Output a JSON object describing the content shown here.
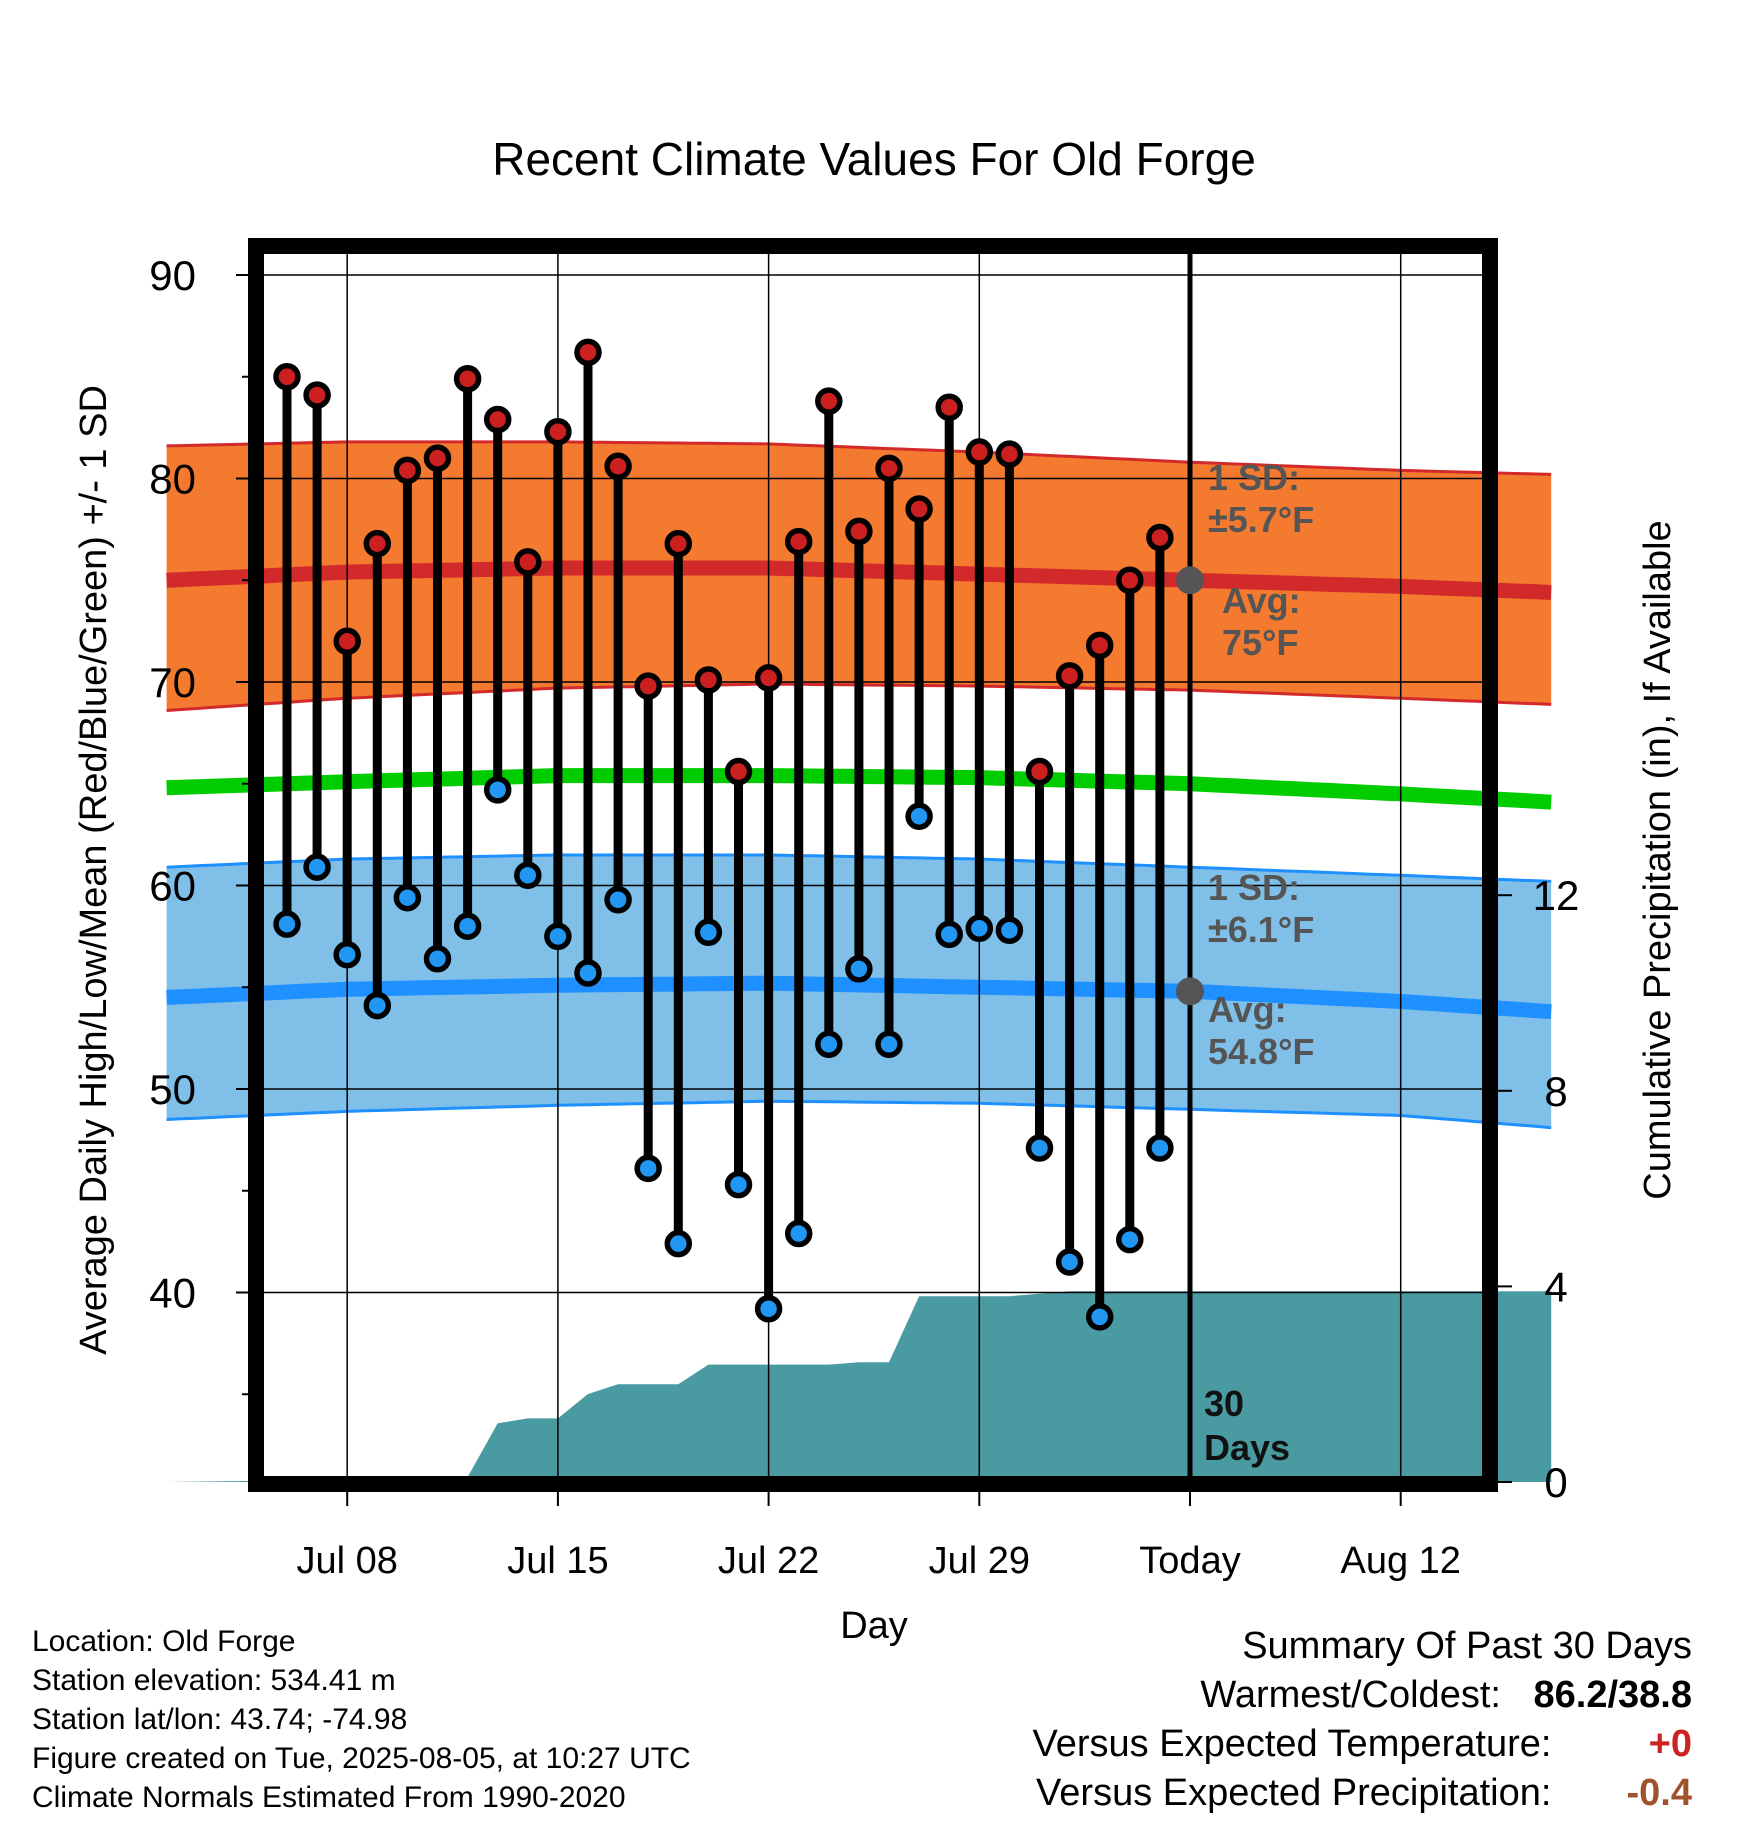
{
  "chart_data": {
    "type": "line",
    "title": "Recent Climate Values For Old Forge",
    "xlabel": "Day",
    "ylabel": "Average Daily High/Low/Mean (Red/Blue/Green) +/- 1 SD",
    "y2label": "Cumulative Precipitation (in), If Available",
    "x_range_days": [
      -34,
      12
    ],
    "ylim": [
      31,
      90
    ],
    "y2lim": [
      0,
      18
    ],
    "y_ticks": [
      40,
      50,
      60,
      70,
      80,
      90
    ],
    "y2_ticks": [
      0,
      4,
      8,
      12
    ],
    "x_ticks": [
      {
        "day": -28,
        "label": "Jul 08"
      },
      {
        "day": -21,
        "label": "Jul 15"
      },
      {
        "day": -14,
        "label": "Jul 22"
      },
      {
        "day": -7,
        "label": "Jul 29"
      },
      {
        "day": 0,
        "label": "Today"
      },
      {
        "day": 7,
        "label": "Aug 12"
      }
    ],
    "grid": true,
    "daily_high": [
      85.0,
      84.1,
      72.0,
      76.8,
      80.4,
      81.0,
      84.9,
      82.9,
      75.9,
      82.3,
      86.2,
      80.6,
      69.8,
      76.8,
      70.1,
      65.6,
      70.2,
      76.9,
      83.8,
      77.4,
      80.5,
      78.5,
      83.5,
      81.3,
      81.2,
      65.6,
      70.3,
      71.8,
      75.0,
      77.1
    ],
    "daily_low": [
      58.1,
      60.9,
      56.6,
      54.1,
      59.4,
      56.4,
      58.0,
      64.7,
      60.5,
      57.5,
      55.7,
      59.3,
      46.1,
      42.4,
      57.7,
      45.3,
      39.2,
      42.9,
      52.2,
      55.9,
      52.2,
      63.4,
      57.6,
      57.9,
      57.8,
      47.1,
      41.5,
      38.8,
      42.6,
      47.1
    ],
    "normal_high": {
      "days": [
        -34,
        -28,
        -21,
        -14,
        -7,
        0,
        7,
        12
      ],
      "avg": [
        75.0,
        75.4,
        75.6,
        75.6,
        75.3,
        75.0,
        74.7,
        74.4
      ],
      "sd_upper": [
        81.6,
        81.8,
        81.8,
        81.7,
        81.3,
        80.8,
        80.4,
        80.2
      ],
      "sd_lower": [
        68.6,
        69.2,
        69.7,
        69.9,
        69.8,
        69.6,
        69.2,
        68.9
      ]
    },
    "normal_mean": {
      "days": [
        -34,
        -28,
        -21,
        -14,
        -7,
        0,
        7,
        12
      ],
      "avg": [
        64.8,
        65.1,
        65.4,
        65.4,
        65.3,
        65.0,
        64.5,
        64.1
      ]
    },
    "normal_low": {
      "days": [
        -34,
        -28,
        -21,
        -14,
        -7,
        0,
        7,
        12
      ],
      "avg": [
        54.5,
        54.9,
        55.1,
        55.2,
        55.0,
        54.8,
        54.3,
        53.8
      ],
      "sd_upper": [
        60.9,
        61.3,
        61.5,
        61.5,
        61.3,
        60.9,
        60.5,
        60.2
      ],
      "sd_lower": [
        48.5,
        48.9,
        49.2,
        49.4,
        49.3,
        49.0,
        48.7,
        48.1
      ]
    },
    "cumulative_precip": {
      "days": [
        -34,
        -28,
        -27,
        -26,
        -25,
        -24,
        -23,
        -22,
        -21,
        -20,
        -19,
        -18,
        -17,
        -16,
        -15,
        -14,
        -13,
        -12,
        -11,
        -10,
        -9,
        -8,
        -7,
        -6,
        -5,
        -4,
        0,
        12
      ],
      "values": [
        0.0,
        0.05,
        0.05,
        0.05,
        0.05,
        0.1,
        1.2,
        1.3,
        1.3,
        1.8,
        2.0,
        2.0,
        2.0,
        2.4,
        2.4,
        2.4,
        2.4,
        2.4,
        2.45,
        2.45,
        3.8,
        3.8,
        3.8,
        3.8,
        3.85,
        3.9,
        3.9,
        3.9
      ]
    },
    "annotations": {
      "high_sd": "1 SD: ±5.7°F",
      "high_avg": "Avg: 75°F",
      "low_sd": "1 SD: ±6.1°F",
      "low_avg": "Avg: 54.8°F",
      "days_marker": "30 Days"
    },
    "colors": {
      "high_band": "#f47a30",
      "high_line": "#d22a2a",
      "mean_line": "#00cc00",
      "low_band": "#80c0e8",
      "low_line": "#1e90ff",
      "precip": "#4a9aa2",
      "high_dot": "#cc1f1f",
      "low_dot": "#2196f3"
    }
  },
  "footer": {
    "location": "Location: Old Forge",
    "elevation": "Station elevation: 534.41 m",
    "latlon": "Station lat/lon: 43.74; -74.98",
    "created": "Figure created on Tue, 2025-08-05, at 10:27 UTC",
    "normals": "Climate Normals Estimated From 1990-2020"
  },
  "summary": {
    "title": "Summary Of Past 30 Days",
    "warm_cold_label": "Warmest/Coldest:",
    "warm_cold_value": "86.2/38.8",
    "temp_label": "Versus Expected Temperature:",
    "temp_value": "+0",
    "precip_label": "Versus Expected Precipitation:",
    "precip_value": "-0.4"
  }
}
